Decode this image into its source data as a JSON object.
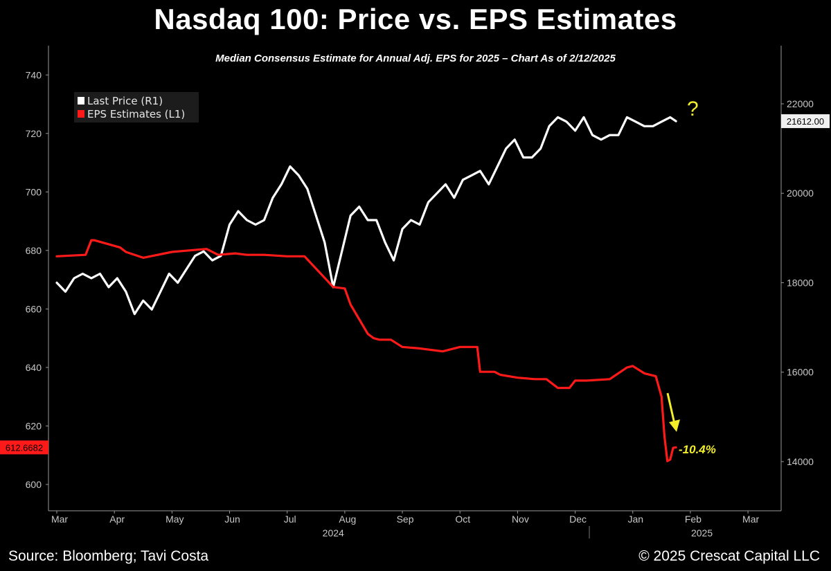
{
  "header": {
    "title": "Nasdaq 100: Price vs. EPS Estimates",
    "subtitle": "Median Consensus Estimate for Annual Adj. EPS for 2025 – Chart As of 2/12/2025"
  },
  "footer": {
    "source": "Source: Bloomberg; Tavi Costa",
    "copyright": "© 2025 Crescat Capital LLC"
  },
  "chart_data": {
    "type": "line",
    "title": "Nasdaq 100: Price vs. EPS Estimates",
    "subtitle": "Median Consensus Estimate for Annual Adj. EPS for 2025 – Chart As of 2/12/2025",
    "x_ticks": [
      "Mar",
      "Apr",
      "May",
      "Jun",
      "Jul",
      "Aug",
      "Sep",
      "Oct",
      "Nov",
      "Dec",
      "Jan",
      "Feb",
      "Mar"
    ],
    "year_labels": [
      "2024",
      "2025"
    ],
    "x_range": [
      0,
      12.6
    ],
    "left_axis": {
      "ticks": [
        600,
        620,
        640,
        660,
        680,
        700,
        720,
        740
      ],
      "ylim": [
        591,
        750
      ]
    },
    "right_axis": {
      "ticks": [
        14000,
        16000,
        18000,
        20000,
        22000
      ],
      "ylim": [
        12900,
        23300
      ]
    },
    "legend": {
      "position": "top-left",
      "entries": [
        {
          "name": "Last Price (R1)",
          "color": "#ffffff"
        },
        {
          "name": "EPS Estimates (L1)",
          "color": "#ff1a1a"
        }
      ]
    },
    "last_values": {
      "price": "21612.00",
      "eps": "612.6682"
    },
    "annotations": {
      "eps_change": "-10.4%",
      "question": "?"
    },
    "series": [
      {
        "name": "Last Price (R1)",
        "axis": "right",
        "color": "#ffffff",
        "x": [
          0,
          0.15,
          0.3,
          0.45,
          0.6,
          0.75,
          0.9,
          1.05,
          1.2,
          1.35,
          1.5,
          1.65,
          1.8,
          1.95,
          2.1,
          2.25,
          2.4,
          2.55,
          2.7,
          2.85,
          3.0,
          3.15,
          3.3,
          3.45,
          3.6,
          3.75,
          3.9,
          4.05,
          4.2,
          4.35,
          4.5,
          4.65,
          4.8,
          4.95,
          5.1,
          5.25,
          5.4,
          5.55,
          5.7,
          5.85,
          6.0,
          6.15,
          6.3,
          6.45,
          6.6,
          6.75,
          6.9,
          7.05,
          7.2,
          7.35,
          7.5,
          7.65,
          7.8,
          7.95,
          8.1,
          8.25,
          8.4,
          8.55,
          8.7,
          8.85,
          9.0,
          9.15,
          9.3,
          9.45,
          9.6,
          9.75,
          9.9,
          10.05,
          10.2,
          10.35,
          10.5,
          10.65,
          10.75
        ],
        "values": [
          18000,
          17800,
          18100,
          18200,
          18100,
          18200,
          17900,
          18100,
          17800,
          17300,
          17600,
          17400,
          17800,
          18200,
          18000,
          18300,
          18600,
          18700,
          18500,
          18600,
          19300,
          19600,
          19400,
          19300,
          19400,
          19900,
          20200,
          20600,
          20400,
          20100,
          19500,
          18900,
          17900,
          18700,
          19500,
          19700,
          19400,
          19400,
          18900,
          18500,
          19200,
          19400,
          19300,
          19800,
          20000,
          20200,
          19900,
          20300,
          20400,
          20500,
          20200,
          20600,
          21000,
          21200,
          20800,
          20800,
          21000,
          21500,
          21700,
          21600,
          21400,
          21700,
          21300,
          21200,
          21300,
          21300,
          21700,
          21600,
          21500,
          21500,
          21600,
          21700,
          21612
        ]
      },
      {
        "name": "EPS Estimates (L1)",
        "axis": "left",
        "color": "#ff1a1a",
        "x": [
          0,
          0.5,
          0.6,
          0.65,
          1.1,
          1.2,
          1.5,
          2.0,
          2.3,
          2.6,
          2.8,
          3.1,
          3.3,
          3.6,
          4.0,
          4.3,
          4.8,
          5.0,
          5.1,
          5.4,
          5.5,
          5.6,
          5.8,
          6.0,
          6.3,
          6.7,
          7.0,
          7.3,
          7.35,
          7.6,
          7.7,
          8.0,
          8.3,
          8.5,
          8.7,
          8.9,
          9.0,
          9.2,
          9.6,
          9.9,
          10.0,
          10.2,
          10.4,
          10.5,
          10.55,
          10.6,
          10.65,
          10.7,
          10.75
        ],
        "values": [
          678.0,
          678.5,
          683.5,
          683.5,
          681.0,
          679.5,
          677.5,
          679.5,
          680.0,
          680.5,
          678.5,
          679.0,
          678.5,
          678.5,
          678.0,
          678.0,
          667.5,
          667.0,
          661.5,
          651.5,
          650.0,
          649.5,
          649.5,
          647.0,
          646.5,
          645.5,
          647.0,
          647.0,
          638.5,
          638.5,
          637.5,
          636.5,
          636.0,
          636.0,
          633.0,
          633.0,
          635.5,
          635.5,
          636.0,
          640.0,
          640.5,
          638.0,
          637.0,
          630.0,
          616.5,
          608.0,
          608.5,
          612.5,
          612.6682
        ]
      }
    ]
  }
}
